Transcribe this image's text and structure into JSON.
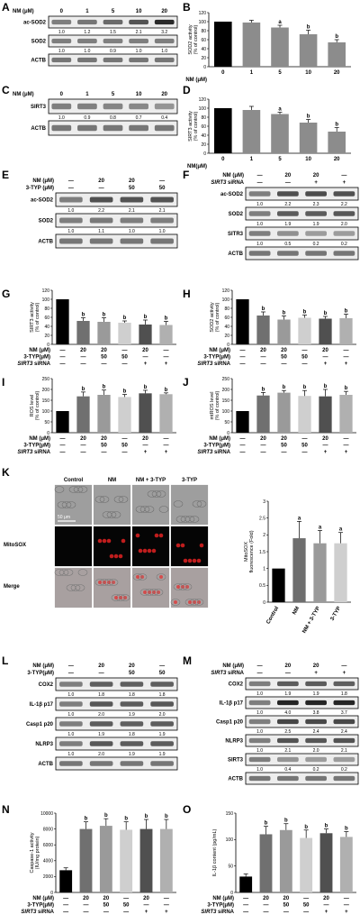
{
  "A": {
    "letter": "A",
    "header_label": "NM (μM)",
    "header_values": [
      "0",
      "1",
      "5",
      "10",
      "20"
    ],
    "blots": [
      {
        "name": "ac-SOD2",
        "values": [
          "1.0",
          "1.2",
          "1.5",
          "2.1",
          "3.2"
        ]
      },
      {
        "name": "SOD2",
        "values": [
          "1.0",
          "1.0",
          "0.9",
          "1.0",
          "1.0"
        ]
      },
      {
        "name": "ACTB",
        "values": []
      }
    ]
  },
  "B": {
    "letter": "B",
    "ylabel": "SOD2 activity\n(% of control)",
    "xlabel_title": "NM (μM)",
    "categories": [
      "0",
      "1",
      "5",
      "10",
      "20"
    ],
    "values": [
      100,
      98,
      87,
      72,
      54
    ],
    "errors": [
      0,
      5,
      5,
      9,
      6
    ],
    "sig": [
      "",
      "",
      "a",
      "b",
      "b"
    ],
    "ylim": [
      0,
      120
    ],
    "yticks": [
      0,
      20,
      40,
      60,
      80,
      100,
      120
    ],
    "colors": [
      "#000000",
      "#8c8c8c",
      "#8c8c8c",
      "#8c8c8c",
      "#8c8c8c"
    ]
  },
  "C": {
    "letter": "C",
    "header_label": "NM (μM)",
    "header_values": [
      "0",
      "1",
      "5",
      "10",
      "20"
    ],
    "blots": [
      {
        "name": "SIRT3",
        "values": [
          "1.0",
          "0.9",
          "0.8",
          "0.7",
          "0.4"
        ]
      },
      {
        "name": "ACTB",
        "values": []
      }
    ]
  },
  "D": {
    "letter": "D",
    "ylabel": "SIRT3 activity\n(% of control)",
    "xlabel_title": "NM(μM)",
    "categories": [
      "0",
      "1",
      "5",
      "10",
      "20"
    ],
    "values": [
      100,
      96,
      87,
      68,
      48
    ],
    "errors": [
      0,
      8,
      4,
      7,
      9
    ],
    "sig": [
      "",
      "",
      "a",
      "b",
      "b"
    ],
    "ylim": [
      0,
      120
    ],
    "yticks": [
      0,
      20,
      40,
      60,
      80,
      100,
      120
    ],
    "colors": [
      "#000000",
      "#8c8c8c",
      "#8c8c8c",
      "#8c8c8c",
      "#8c8c8c"
    ]
  },
  "E": {
    "letter": "E",
    "header_rows": [
      {
        "label": "NM (μM)",
        "values": [
          "—",
          "20",
          "20",
          "—"
        ]
      },
      {
        "label": "3-TYP (μM)",
        "values": [
          "—",
          "—",
          "50",
          "50"
        ]
      }
    ],
    "blots": [
      {
        "name": "ac-SOD2",
        "values": [
          "1.0",
          "2.2",
          "2.1",
          "2.1"
        ]
      },
      {
        "name": "SOD2",
        "values": [
          "1.0",
          "1.1",
          "1.0",
          "1.0"
        ]
      },
      {
        "name": "ACTB",
        "values": []
      }
    ]
  },
  "F": {
    "letter": "F",
    "header_rows": [
      {
        "label": "NM (μM)",
        "values": [
          "—",
          "20",
          "20",
          "—"
        ]
      },
      {
        "label": "SIRT3 siRNA",
        "values": [
          "—",
          "—",
          "+",
          "+"
        ]
      }
    ],
    "blots": [
      {
        "name": "ac-SOD2",
        "values": [
          "1.0",
          "2.2",
          "2.3",
          "2.2"
        ]
      },
      {
        "name": "SOD2",
        "values": [
          "1.0",
          "1.9",
          "1.9",
          "2.0"
        ]
      },
      {
        "name": "SITR3",
        "values": [
          "1.0",
          "0.5",
          "0.2",
          "0.2"
        ]
      },
      {
        "name": "ACTB",
        "values": []
      }
    ]
  },
  "bottom_rows": [
    {
      "label": "NM (μM)",
      "values": [
        "—",
        "20",
        "20",
        "—",
        "20",
        "—"
      ]
    },
    {
      "label": "3-TYP(μM)",
      "values": [
        "—",
        "—",
        "50",
        "50",
        "—",
        "—"
      ]
    },
    {
      "label": "SIRT3 siRNA",
      "values": [
        "—",
        "—",
        "—",
        "—",
        "+",
        "+"
      ]
    }
  ],
  "G": {
    "letter": "G",
    "ylabel": "SIRT3 activity\n(% of control)",
    "values": [
      100,
      52,
      50,
      48,
      44,
      43
    ],
    "errors": [
      0,
      7,
      9,
      4,
      10,
      8
    ],
    "sig": [
      "",
      "b",
      "b",
      "b",
      "b",
      "b"
    ],
    "ylim": [
      0,
      120
    ],
    "yticks": [
      0,
      20,
      40,
      60,
      80,
      100,
      120
    ]
  },
  "H": {
    "letter": "H",
    "ylabel": "SOD2 activity\n(% of control)",
    "values": [
      100,
      64,
      55,
      59,
      57,
      58
    ],
    "errors": [
      0,
      8,
      8,
      6,
      5,
      9
    ],
    "sig": [
      "",
      "b",
      "b",
      "b",
      "b",
      "b"
    ],
    "ylim": [
      0,
      120
    ],
    "yticks": [
      0,
      20,
      40,
      60,
      80,
      100,
      120
    ]
  },
  "I": {
    "letter": "I",
    "ylabel": "ROS level\n(% of control)",
    "values": [
      100,
      168,
      175,
      165,
      182,
      178
    ],
    "errors": [
      0,
      20,
      22,
      12,
      14,
      6
    ],
    "sig": [
      "",
      "b",
      "b",
      "b",
      "b",
      "b"
    ],
    "ylim": [
      0,
      250
    ],
    "yticks": [
      0,
      50,
      100,
      150,
      200,
      250
    ]
  },
  "J": {
    "letter": "J",
    "ylabel": "mtROS level\n(% of control)",
    "values": [
      100,
      172,
      185,
      170,
      168,
      175
    ],
    "errors": [
      0,
      14,
      10,
      25,
      32,
      16
    ],
    "sig": [
      "",
      "b",
      "b",
      "b",
      "b",
      "b"
    ],
    "ylim": [
      0,
      250
    ],
    "yticks": [
      0,
      50,
      100,
      150,
      200,
      250
    ]
  },
  "K": {
    "letter": "K",
    "columns": [
      "Control",
      "NM",
      "NM + 3-TYP",
      "3-TYP"
    ],
    "rows": [
      "MitoSOX",
      "Merge"
    ],
    "scale_bar": "50 μm",
    "chart": {
      "ylabel": "MitoSOX\nfluorescence (Fold)",
      "categories": [
        "Control",
        "NM",
        "NM + 3-TYP",
        "3-TYP"
      ],
      "values": [
        1.0,
        1.9,
        1.75,
        1.75
      ],
      "errors": [
        0,
        0.5,
        0.38,
        0.32
      ],
      "sig": [
        "",
        "a",
        "a",
        "a"
      ],
      "ylim": [
        0,
        3.0
      ],
      "yticks": [
        0.0,
        0.5,
        1.0,
        1.5,
        2.0,
        2.5,
        3.0
      ],
      "colors": [
        "#000000",
        "#6e6e6e",
        "#9a9a9a",
        "#cfcfcf"
      ]
    }
  },
  "L": {
    "letter": "L",
    "header_rows": [
      {
        "label": "NM (μM)",
        "values": [
          "—",
          "20",
          "20",
          "—"
        ]
      },
      {
        "label": "3-TYP(μM)",
        "values": [
          "—",
          "—",
          "50",
          "50"
        ]
      }
    ],
    "blots": [
      {
        "name": "COX2",
        "values": [
          "1.0",
          "1.8",
          "1.8",
          "1.8"
        ]
      },
      {
        "name": "IL-1β p17",
        "values": [
          "1.0",
          "2.0",
          "1.9",
          "2.0"
        ]
      },
      {
        "name": "Casp1 p20",
        "values": [
          "1.0",
          "1.9",
          "1.8",
          "1.9"
        ]
      },
      {
        "name": "NLRP3",
        "values": [
          "1.0",
          "2.0",
          "1.9",
          "1.9"
        ]
      },
      {
        "name": "ACTB",
        "values": []
      }
    ]
  },
  "M": {
    "letter": "M",
    "header_rows": [
      {
        "label": "NM (μM)",
        "values": [
          "—",
          "20",
          "20",
          "—"
        ]
      },
      {
        "label": "SIRT3 siRNA",
        "values": [
          "—",
          "—",
          "+",
          "+"
        ]
      }
    ],
    "blots": [
      {
        "name": "COX2",
        "values": [
          "1.0",
          "1.9",
          "1.9",
          "1.8"
        ]
      },
      {
        "name": "IL-1β p17",
        "values": [
          "1.0",
          "4.0",
          "3.8",
          "3.7"
        ]
      },
      {
        "name": "Casp1 p20",
        "values": [
          "1.0",
          "2.5",
          "2.4",
          "2.4"
        ]
      },
      {
        "name": "NLRP3",
        "values": [
          "1.0",
          "2.1",
          "2.0",
          "2.1"
        ]
      },
      {
        "name": "SIRT3",
        "values": [
          "1.0",
          "0.4",
          "0.2",
          "0.2"
        ]
      },
      {
        "name": "ACTB",
        "values": []
      }
    ]
  },
  "N": {
    "letter": "N",
    "ylabel": "Caspase-1 activity\n(IU/mg protein)",
    "values": [
      2800,
      8000,
      8400,
      7900,
      8000,
      8000
    ],
    "errors": [
      300,
      900,
      900,
      1000,
      1200,
      1200
    ],
    "sig": [
      "",
      "b",
      "b",
      "b",
      "b",
      "b"
    ],
    "ylim": [
      0,
      10000
    ],
    "yticks": [
      0,
      2000,
      4000,
      6000,
      8000,
      10000
    ]
  },
  "O": {
    "letter": "O",
    "ylabel": "IL-1β content (pg/mL)",
    "values": [
      30,
      110,
      118,
      103,
      112,
      105
    ],
    "errors": [
      5,
      15,
      12,
      15,
      8,
      10
    ],
    "sig": [
      "",
      "b",
      "b",
      "b",
      "b",
      "b"
    ],
    "ylim": [
      0,
      150
    ],
    "yticks": [
      0,
      50,
      100,
      150
    ]
  },
  "bar_colors_6": [
    "#000000",
    "#707070",
    "#9a9a9a",
    "#cfcfcf",
    "#505050",
    "#b0b0b0"
  ]
}
